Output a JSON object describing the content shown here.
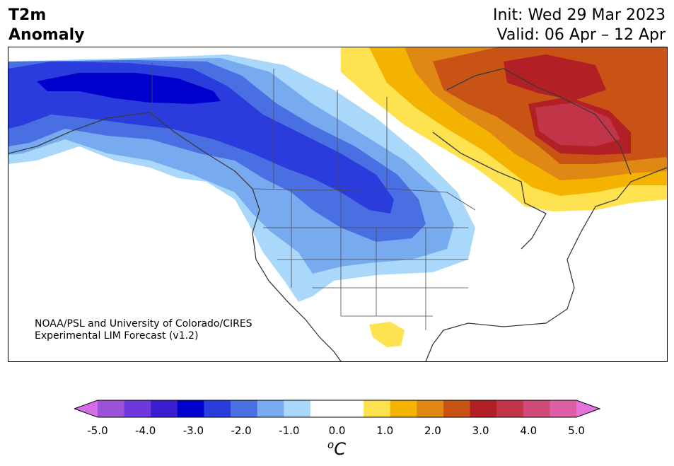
{
  "title": {
    "line1": "T2m",
    "line2": "Anomaly"
  },
  "dates": {
    "init": "Init: Wed 29 Mar 2023",
    "valid": "Valid: 06 Apr – 12 Apr"
  },
  "credit": {
    "line1": "NOAA/PSL and University of Colorado/CIRES",
    "line2": "Experimental LIM Forecast (v1.2)"
  },
  "colorbar": {
    "ticks": [
      "-5.0",
      "-4.0",
      "-3.0",
      "-2.0",
      "-1.0",
      "0.0",
      "1.0",
      "2.0",
      "3.0",
      "4.0",
      "5.0"
    ],
    "unit_sup": "o",
    "unit_main": "C",
    "colors": [
      "#9c51d9",
      "#6e38dc",
      "#3a1fd1",
      "#0000cd",
      "#2a3cdc",
      "#4a6fe3",
      "#78aaf0",
      "#a9d8fb",
      "#ffffff",
      "#ffffff",
      "#ffe24f",
      "#f3b300",
      "#df8814",
      "#c85314",
      "#b21f24",
      "#c23448",
      "#cf4a78",
      "#dd5fa6"
    ],
    "extend_low": "#d36ee6",
    "extend_high": "#e373d9"
  },
  "anomaly_colors": {
    "deep_blue": "#0000cd",
    "blue": "#2a3cdc",
    "mid_blue": "#4a6fe3",
    "light_blue": "#78aaf0",
    "pale_blue": "#a9d8fb",
    "yellow": "#ffe24f",
    "gold": "#f3b300",
    "orange": "#df8814",
    "dark_orange": "#c85314",
    "red": "#b21f24",
    "rose": "#c23448"
  }
}
